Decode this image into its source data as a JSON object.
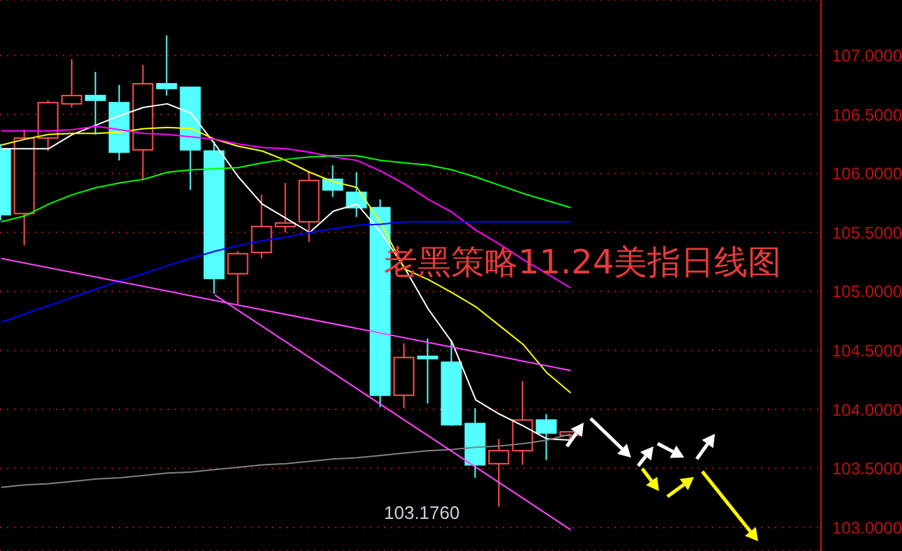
{
  "chart_data": {
    "type": "candlestick",
    "title": "老黑策略11.24美指日线图",
    "categories": [
      null,
      null,
      null,
      null,
      null,
      null,
      null,
      null,
      null,
      null,
      null,
      null,
      null,
      null,
      null,
      null,
      null,
      null,
      null,
      null,
      null,
      null,
      null,
      null,
      null
    ],
    "ohlc": [
      [
        106.2,
        106.25,
        105.6,
        105.65
      ],
      [
        105.66,
        106.37,
        105.39,
        106.3
      ],
      [
        106.3,
        106.62,
        106.19,
        106.6
      ],
      [
        106.59,
        106.97,
        106.56,
        106.66
      ],
      [
        106.66,
        106.86,
        106.33,
        106.62
      ],
      [
        106.6,
        106.75,
        106.11,
        106.18
      ],
      [
        106.2,
        106.92,
        105.94,
        106.76
      ],
      [
        106.76,
        107.17,
        106.66,
        106.72
      ],
      [
        106.73,
        106.73,
        105.86,
        106.2
      ],
      [
        106.19,
        106.27,
        104.98,
        105.11
      ],
      [
        105.15,
        105.34,
        104.89,
        105.32
      ],
      [
        105.33,
        105.82,
        105.28,
        105.55
      ],
      [
        105.55,
        105.92,
        105.5,
        105.58
      ],
      [
        105.59,
        106.01,
        105.42,
        105.94
      ],
      [
        105.95,
        106.07,
        105.8,
        105.86
      ],
      [
        105.84,
        106.01,
        105.63,
        105.71
      ],
      [
        105.71,
        105.78,
        104.02,
        104.12
      ],
      [
        104.12,
        104.56,
        104.01,
        104.44
      ],
      [
        104.45,
        104.6,
        104.05,
        104.43
      ],
      [
        104.4,
        104.59,
        103.86,
        103.87
      ],
      [
        103.88,
        104.01,
        103.42,
        103.53
      ],
      [
        103.54,
        103.75,
        103.176,
        103.65
      ],
      [
        103.65,
        104.24,
        103.53,
        103.91
      ],
      [
        103.91,
        103.96,
        103.57,
        103.8
      ],
      [
        103.78,
        103.81,
        103.74,
        103.81
      ]
    ],
    "colors": [
      "#54ffff",
      "#ff5050",
      "#ff5050",
      "#ff5050",
      "#54ffff",
      "#54ffff",
      "#ff5050",
      "#54ffff",
      "#54ffff",
      "#54ffff",
      "#ff5050",
      "#ff5050",
      "#ff5050",
      "#ff5050",
      "#54ffff",
      "#54ffff",
      "#54ffff",
      "#ff5050",
      "#54ffff",
      "#54ffff",
      "#54ffff",
      "#ff5050",
      "#ff5050",
      "#54ffff",
      "#ff5050"
    ],
    "series": [
      {
        "type": "line",
        "color": "#ffffff",
        "values": [
          106.21,
          106.21,
          106.21,
          106.33,
          106.41,
          106.49,
          106.56,
          106.59,
          106.51,
          106.25,
          105.97,
          105.74,
          105.62,
          105.5,
          105.68,
          105.74,
          105.5,
          105.2,
          104.85,
          104.57,
          104.08,
          103.96,
          103.86,
          103.75,
          103.74
        ]
      },
      {
        "type": "line",
        "color": "#ffff00",
        "values": [
          106.24,
          106.29,
          106.33,
          106.34,
          106.34,
          106.35,
          106.38,
          106.39,
          106.38,
          106.29,
          106.23,
          106.19,
          106.11,
          106.01,
          105.93,
          105.88,
          105.58,
          105.19,
          105.1,
          104.99,
          104.87,
          104.71,
          104.55,
          104.31,
          104.14
        ]
      },
      {
        "type": "line",
        "color": "#ff00ff",
        "values": [
          106.36,
          106.36,
          106.36,
          106.37,
          106.4,
          106.37,
          106.34,
          106.33,
          106.31,
          106.29,
          106.25,
          106.22,
          106.21,
          106.18,
          106.14,
          106.11,
          106.02,
          105.91,
          105.78,
          105.67,
          105.52,
          105.4,
          105.27,
          105.15,
          105.03
        ]
      },
      {
        "type": "line",
        "color": "#00ff00",
        "values": [
          105.59,
          105.64,
          105.74,
          105.82,
          105.88,
          105.92,
          105.95,
          106.01,
          106.03,
          106.04,
          106.05,
          106.09,
          106.12,
          106.14,
          106.15,
          106.15,
          106.11,
          106.09,
          106.07,
          106.03,
          105.97,
          105.9,
          105.83,
          105.77,
          105.71
        ]
      },
      {
        "type": "line",
        "color": "#0000ff",
        "values": [
          104.74,
          104.81,
          104.88,
          104.95,
          105.02,
          105.09,
          105.15,
          105.22,
          105.28,
          105.34,
          105.39,
          105.43,
          105.46,
          105.5,
          105.53,
          105.56,
          105.57,
          105.59,
          105.59,
          105.59,
          105.59,
          105.59,
          105.59,
          105.59,
          105.59
        ]
      },
      {
        "type": "line",
        "color": "#808080",
        "values": [
          103.34,
          103.36,
          103.37,
          103.39,
          103.41,
          103.42,
          103.44,
          103.46,
          103.47,
          103.49,
          103.51,
          103.53,
          103.54,
          103.56,
          103.58,
          103.59,
          103.61,
          103.63,
          103.65,
          103.66,
          103.68,
          103.69,
          103.71,
          103.74,
          103.79
        ]
      },
      {
        "type": "line",
        "color": "#ff44ff",
        "values": [
          105.28,
          null,
          null,
          null,
          null,
          null,
          null,
          null,
          null,
          null,
          null,
          null,
          null,
          null,
          null,
          null,
          null,
          null,
          null,
          null,
          null,
          null,
          null,
          null,
          104.33
        ]
      },
      {
        "type": "line",
        "color": "#ff44ff",
        "values": [
          null,
          null,
          null,
          null,
          null,
          null,
          null,
          null,
          null,
          104.97,
          null,
          null,
          null,
          null,
          null,
          null,
          null,
          null,
          null,
          null,
          null,
          null,
          null,
          null,
          102.98
        ]
      }
    ],
    "ylim": [
      102.8,
      107.47
    ],
    "yticks": [
      {
        "value": 103,
        "label": "103.0000"
      },
      {
        "value": 103.5,
        "label": "103.5000"
      },
      {
        "value": 104,
        "label": "104.0000"
      },
      {
        "value": 104.5,
        "label": "104.5000"
      },
      {
        "value": 105,
        "label": "105.0000"
      },
      {
        "value": 105.5,
        "label": "105.5000"
      },
      {
        "value": 106,
        "label": "106.0000"
      },
      {
        "value": 106.5,
        "label": "106.5000"
      },
      {
        "value": 107,
        "label": "107.0000"
      }
    ],
    "grid": "y",
    "tick_labels": "y",
    "annotations": [
      "103.1760"
    ]
  }
}
